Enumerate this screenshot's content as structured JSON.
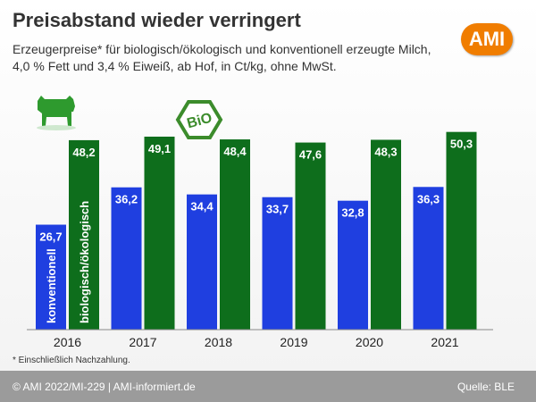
{
  "header": {
    "title": "Preisabstand wieder verringert",
    "subtitle": "Erzeugerpreise* für biologisch/ökologisch und konventionell erzeugte Milch, 4,0 % Fett und 3,4 % Eiweiß, ab Hof, in Ct/kg, ohne MwSt.",
    "logo_text": "AMI"
  },
  "bio_badge": "BiO",
  "icons": [
    "cow-icon",
    "bio-badge-icon"
  ],
  "colors": {
    "conventional": "#1f3fe0",
    "organic": "#0e6e1c",
    "accent": "#f07d00",
    "footer": "#9b9b9b"
  },
  "chart_data": {
    "type": "bar",
    "categories": [
      "2016",
      "2017",
      "2018",
      "2019",
      "2020",
      "2021"
    ],
    "series": [
      {
        "name": "konventionell",
        "values": [
          26.7,
          36.2,
          34.4,
          33.7,
          32.8,
          36.3
        ],
        "labels": [
          "26,7",
          "36,2",
          "34,4",
          "33,7",
          "32,8",
          "36,3"
        ]
      },
      {
        "name": "biologisch/ökologisch",
        "values": [
          48.2,
          49.1,
          48.4,
          47.6,
          48.3,
          50.3
        ],
        "labels": [
          "48,2",
          "49,1",
          "48,4",
          "47,6",
          "48,3",
          "50,3"
        ]
      }
    ],
    "ylim": [
      0,
      55
    ],
    "legend": "inside first bar pair, vertical text",
    "grid": false
  },
  "footnote": "* Einschließlich Nachzahlung.",
  "footer": {
    "copyright": "© AMI 2022/MI-229 | AMI-informiert.de",
    "source": "Quelle:  BLE"
  }
}
